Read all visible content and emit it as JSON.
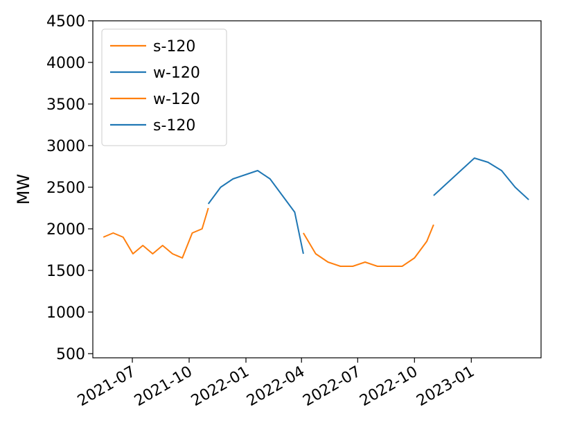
{
  "chart_data": {
    "type": "line",
    "title": "",
    "xlabel": "",
    "ylabel": "MW",
    "ylim": [
      450,
      4500
    ],
    "xlim": [
      "2021-04-28",
      "2023-04-24"
    ],
    "grid": false,
    "legend_position": "top-left",
    "y_ticks": [
      "500",
      "1000",
      "1500",
      "2000",
      "2500",
      "3000",
      "3500",
      "4000",
      "4500"
    ],
    "x_ticks": [
      "2021-07",
      "2021-10",
      "2022-01",
      "2022-04",
      "2022-07",
      "2022-10",
      "2023-01"
    ],
    "x_tick_dates": [
      "2021-07-01",
      "2021-10-01",
      "2022-01-01",
      "2022-04-01",
      "2022-07-01",
      "2022-10-01",
      "2023-01-01"
    ],
    "legend": [
      {
        "label": "s-120",
        "color": "#ff7f0e"
      },
      {
        "label": "w-120",
        "color": "#1f77b4"
      },
      {
        "label": "w-120",
        "color": "#ff7f0e"
      },
      {
        "label": "s-120",
        "color": "#1f77b4"
      }
    ],
    "series": [
      {
        "color": "#ff7f0e",
        "x": [
          "2021-05-15",
          "2021-05-31",
          "2021-06-16",
          "2021-07-02",
          "2021-07-18",
          "2021-08-03",
          "2021-08-19",
          "2021-09-04",
          "2021-09-20",
          "2021-10-06",
          "2021-10-22",
          "2021-11-01"
        ],
        "y": [
          1900,
          1950,
          1900,
          1700,
          1800,
          1700,
          1800,
          1700,
          1650,
          1950,
          2000,
          2250
        ]
      },
      {
        "color": "#1f77b4",
        "x": [
          "2021-11-01",
          "2021-11-21",
          "2021-12-11",
          "2021-12-31",
          "2022-01-20",
          "2022-02-09",
          "2022-03-01",
          "2022-03-21",
          "2022-04-04"
        ],
        "y": [
          2300,
          2500,
          2600,
          2650,
          2700,
          2600,
          2400,
          2200,
          1700
        ]
      },
      {
        "color": "#ff7f0e",
        "x": [
          "2022-04-04",
          "2022-04-24",
          "2022-05-14",
          "2022-06-03",
          "2022-06-23",
          "2022-07-13",
          "2022-08-02",
          "2022-08-22",
          "2022-09-11",
          "2022-10-01",
          "2022-10-21",
          "2022-11-01"
        ],
        "y": [
          1950,
          1700,
          1600,
          1550,
          1550,
          1600,
          1550,
          1550,
          1550,
          1650,
          1850,
          2050
        ]
      },
      {
        "color": "#1f77b4",
        "x": [
          "2022-11-01",
          "2022-11-23",
          "2022-12-15",
          "2023-01-06",
          "2023-01-28",
          "2023-02-19",
          "2023-03-13",
          "2023-04-04"
        ],
        "y": [
          2400,
          2550,
          2700,
          2850,
          2800,
          2700,
          2500,
          2350
        ]
      }
    ]
  }
}
